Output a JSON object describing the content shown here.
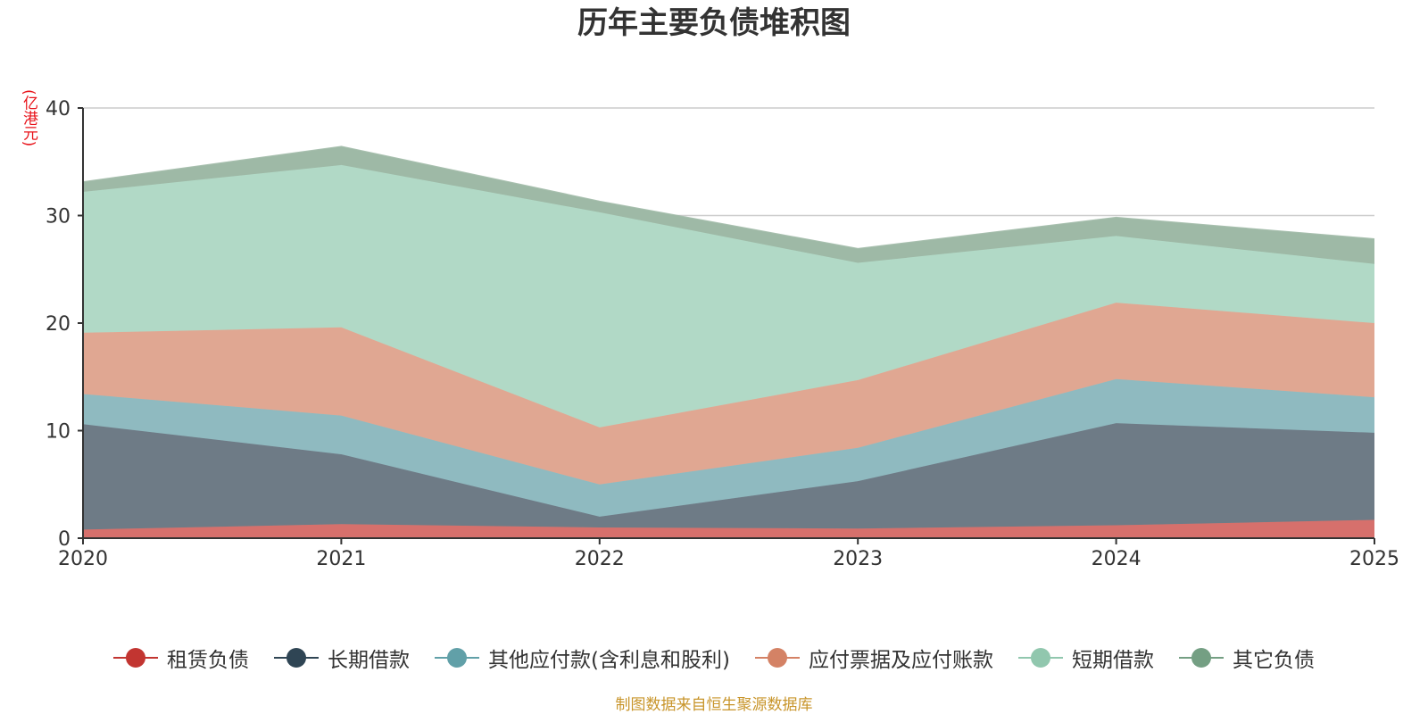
{
  "chart_data": {
    "type": "area",
    "stacked": true,
    "title": "历年主要负债堆积图",
    "unit": "(亿港元)",
    "x": [
      "2020",
      "2021",
      "2022",
      "2023",
      "2024",
      "2025"
    ],
    "ylim": [
      0,
      40
    ],
    "yticks": [
      "0",
      "10",
      "20",
      "30",
      "40"
    ],
    "grid": true,
    "legend_position": "bottom",
    "series": [
      {
        "name": "租赁负债",
        "color": "#c23531",
        "fill": "#d6706c",
        "values": [
          0.8,
          1.3,
          1.0,
          0.9,
          1.2,
          1.7
        ]
      },
      {
        "name": "长期借款",
        "color": "#2f4554",
        "fill": "#6e7b86",
        "values": [
          9.8,
          6.5,
          1.0,
          4.4,
          9.5,
          8.1
        ]
      },
      {
        "name": "其他应付款(含利息和股利)",
        "color": "#61a0a8",
        "fill": "#8fbac0",
        "values": [
          2.8,
          3.6,
          3.0,
          3.1,
          4.1,
          3.3
        ]
      },
      {
        "name": "应付票据及应付账款",
        "color": "#d48265",
        "fill": "#e0a792",
        "values": [
          5.7,
          8.2,
          5.3,
          6.3,
          7.1,
          6.9
        ]
      },
      {
        "name": "短期借款",
        "color": "#91c7ae",
        "fill": "#b1d9c6",
        "values": [
          13.1,
          15.1,
          20.0,
          10.9,
          6.2,
          5.5
        ]
      },
      {
        "name": "其它负债",
        "color": "#749f83",
        "fill": "#9eb9a6",
        "values": [
          0.9,
          1.7,
          1.0,
          1.3,
          1.7,
          2.3
        ]
      }
    ],
    "source": "制图数据来自恒生聚源数据库"
  }
}
